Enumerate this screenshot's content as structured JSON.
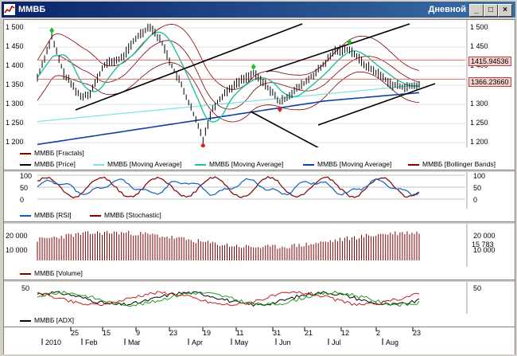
{
  "window": {
    "title": "ММВБ",
    "timeframe": "Дневной",
    "buttons": {
      "minimize": "_",
      "maximize": "□",
      "close": "×"
    },
    "colors": {
      "titlebar": "#0a246a",
      "accent": "#3a6ea5"
    }
  },
  "main_chart": {
    "y_ticks": [
      "1 500",
      "1 450",
      "1 400",
      "1 350",
      "1 300",
      "1 250",
      "1 200"
    ],
    "price_labels": [
      "1415.94536",
      "1366.23660"
    ],
    "legend": [
      {
        "label": "ММВБ [Fractals]",
        "color": "#800000"
      },
      {
        "label": "ММВБ [Price]",
        "color": "#000000"
      },
      {
        "label": "ММВБ [Moving Average]",
        "color": "#80e0e0"
      },
      {
        "label": "ММВБ [Moving Average]",
        "color": "#20c0a0"
      },
      {
        "label": "ММВБ [Moving Average]",
        "color": "#1040a0"
      },
      {
        "label": "ММВБ [Bollinger Bands]",
        "color": "#800000"
      }
    ]
  },
  "osc_chart": {
    "y_ticks": [
      "100",
      "50",
      "0"
    ],
    "legend": [
      {
        "label": "ММВБ [RSI]",
        "color": "#1060c0"
      },
      {
        "label": "ММВБ [Stochastic]",
        "color": "#800000"
      }
    ]
  },
  "volume_chart": {
    "y_ticks": [
      "20 000",
      "10 000"
    ],
    "right_label": "15 783",
    "legend": [
      {
        "label": "ММВБ [Volume]",
        "color": "#800000"
      }
    ]
  },
  "adx_chart": {
    "y_ticks": [
      "50"
    ],
    "legend": [
      {
        "label": "ММВБ [ADX]",
        "color": "#000000"
      }
    ]
  },
  "x_axis": {
    "day_labels": [
      "25",
      "15",
      "9",
      "23",
      "19",
      "11",
      "31",
      "21",
      "12",
      "2",
      "23"
    ],
    "month_labels": [
      "2010",
      "Feb",
      "Mar",
      "Apr",
      "May",
      "Jun",
      "Jul",
      "Aug"
    ]
  }
}
